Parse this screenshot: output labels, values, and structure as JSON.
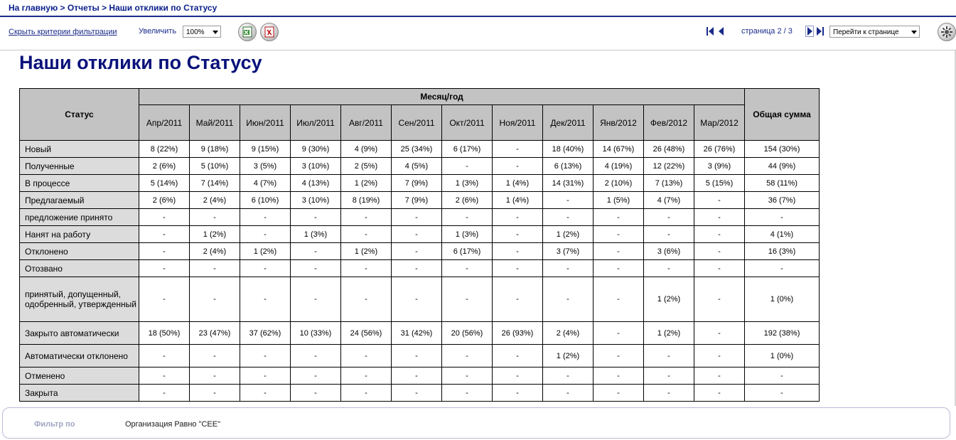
{
  "breadcrumb": {
    "home": "На главную",
    "sep1": " > ",
    "reports": "Отчеты",
    "sep2": " > ",
    "current": "Наши отклики по Статусу"
  },
  "toolbar": {
    "hide_filter": "Скрыть критерии фильтрации",
    "zoom_label": "Увеличить",
    "zoom_value": "100%",
    "page_text": "страница 2 / 3",
    "goto_page": "Перейти к странице"
  },
  "report": {
    "title": "Наши отклики по Статусу",
    "status_header": "Статус",
    "month_header": "Месяц/год",
    "total_header": "Общая сумма",
    "months": [
      "Апр/2011",
      "Май/2011",
      "Июн/2011",
      "Июл/2011",
      "Авг/2011",
      "Сен/2011",
      "Окт/2011",
      "Ноя/2011",
      "Дек/2011",
      "Янв/2012",
      "Фев/2012",
      "Мар/2012"
    ],
    "rows": [
      {
        "status": "Новый",
        "values": [
          "8 (22%)",
          "9 (18%)",
          "9 (15%)",
          "9 (30%)",
          "4 (9%)",
          "25 (34%)",
          "6 (17%)",
          "-",
          "18 (40%)",
          "14 (67%)",
          "26 (48%)",
          "26 (76%)"
        ],
        "total": "154 (30%)"
      },
      {
        "status": "Полученные",
        "values": [
          "2 (6%)",
          "5 (10%)",
          "3 (5%)",
          "3 (10%)",
          "2 (5%)",
          "4 (5%)",
          "-",
          "-",
          "6 (13%)",
          "4 (19%)",
          "12 (22%)",
          "3 (9%)"
        ],
        "total": "44 (9%)"
      },
      {
        "status": "В процессе",
        "values": [
          "5 (14%)",
          "7 (14%)",
          "4 (7%)",
          "4 (13%)",
          "1 (2%)",
          "7 (9%)",
          "1 (3%)",
          "1 (4%)",
          "14 (31%)",
          "2 (10%)",
          "7 (13%)",
          "5 (15%)"
        ],
        "total": "58 (11%)"
      },
      {
        "status": "Предлагаемый",
        "values": [
          "2 (6%)",
          "2 (4%)",
          "6 (10%)",
          "3 (10%)",
          "8 (19%)",
          "7 (9%)",
          "2 (6%)",
          "1 (4%)",
          "-",
          "1 (5%)",
          "4 (7%)",
          "-"
        ],
        "total": "36 (7%)"
      },
      {
        "status": "предложение принято",
        "values": [
          "-",
          "-",
          "-",
          "-",
          "-",
          "-",
          "-",
          "-",
          "-",
          "-",
          "-",
          "-"
        ],
        "total": "-"
      },
      {
        "status": "Нанят на работу",
        "values": [
          "-",
          "1 (2%)",
          "-",
          "1 (3%)",
          "-",
          "-",
          "1 (3%)",
          "-",
          "1 (2%)",
          "-",
          "-",
          "-"
        ],
        "total": "4 (1%)"
      },
      {
        "status": "Отклонено",
        "values": [
          "-",
          "2 (4%)",
          "1 (2%)",
          "-",
          "1 (2%)",
          "-",
          "6 (17%)",
          "-",
          "3 (7%)",
          "-",
          "3 (6%)",
          "-"
        ],
        "total": "16 (3%)"
      },
      {
        "status": "Отозвано",
        "values": [
          "-",
          "-",
          "-",
          "-",
          "-",
          "-",
          "-",
          "-",
          "-",
          "-",
          "-",
          "-"
        ],
        "total": "-"
      },
      {
        "status": "принятый, допущенный, одобренный, утвержденный",
        "values": [
          "-",
          "-",
          "-",
          "-",
          "-",
          "-",
          "-",
          "-",
          "-",
          "-",
          "1 (2%)",
          "-"
        ],
        "total": "1 (0%)"
      },
      {
        "status": "Закрыто автоматически",
        "values": [
          "18 (50%)",
          "23 (47%)",
          "37 (62%)",
          "10 (33%)",
          "24 (56%)",
          "31 (42%)",
          "20 (56%)",
          "26 (93%)",
          "2 (4%)",
          "-",
          "1 (2%)",
          "-"
        ],
        "total": "192 (38%)"
      },
      {
        "status": "Автоматически отклонено",
        "values": [
          "-",
          "-",
          "-",
          "-",
          "-",
          "-",
          "-",
          "-",
          "1 (2%)",
          "-",
          "-",
          "-"
        ],
        "total": "1 (0%)"
      },
      {
        "status": "Отменено",
        "values": [
          "-",
          "-",
          "-",
          "-",
          "-",
          "-",
          "-",
          "-",
          "-",
          "-",
          "-",
          "-"
        ],
        "total": "-"
      },
      {
        "status": "Закрыта",
        "values": [
          "-",
          "-",
          "-",
          "-",
          "-",
          "-",
          "-",
          "-",
          "-",
          "-",
          "-",
          "-"
        ],
        "total": "-"
      }
    ]
  },
  "filter": {
    "label": "Фильтр по",
    "value": "Организация Равно \"CEE\""
  },
  "icons": {
    "excel": "excel-export-icon",
    "pdf": "pdf-export-icon",
    "first": "first-page-icon",
    "prev": "previous-page-icon",
    "next": "next-page-icon",
    "last": "last-page-icon",
    "settings": "settings-icon"
  }
}
